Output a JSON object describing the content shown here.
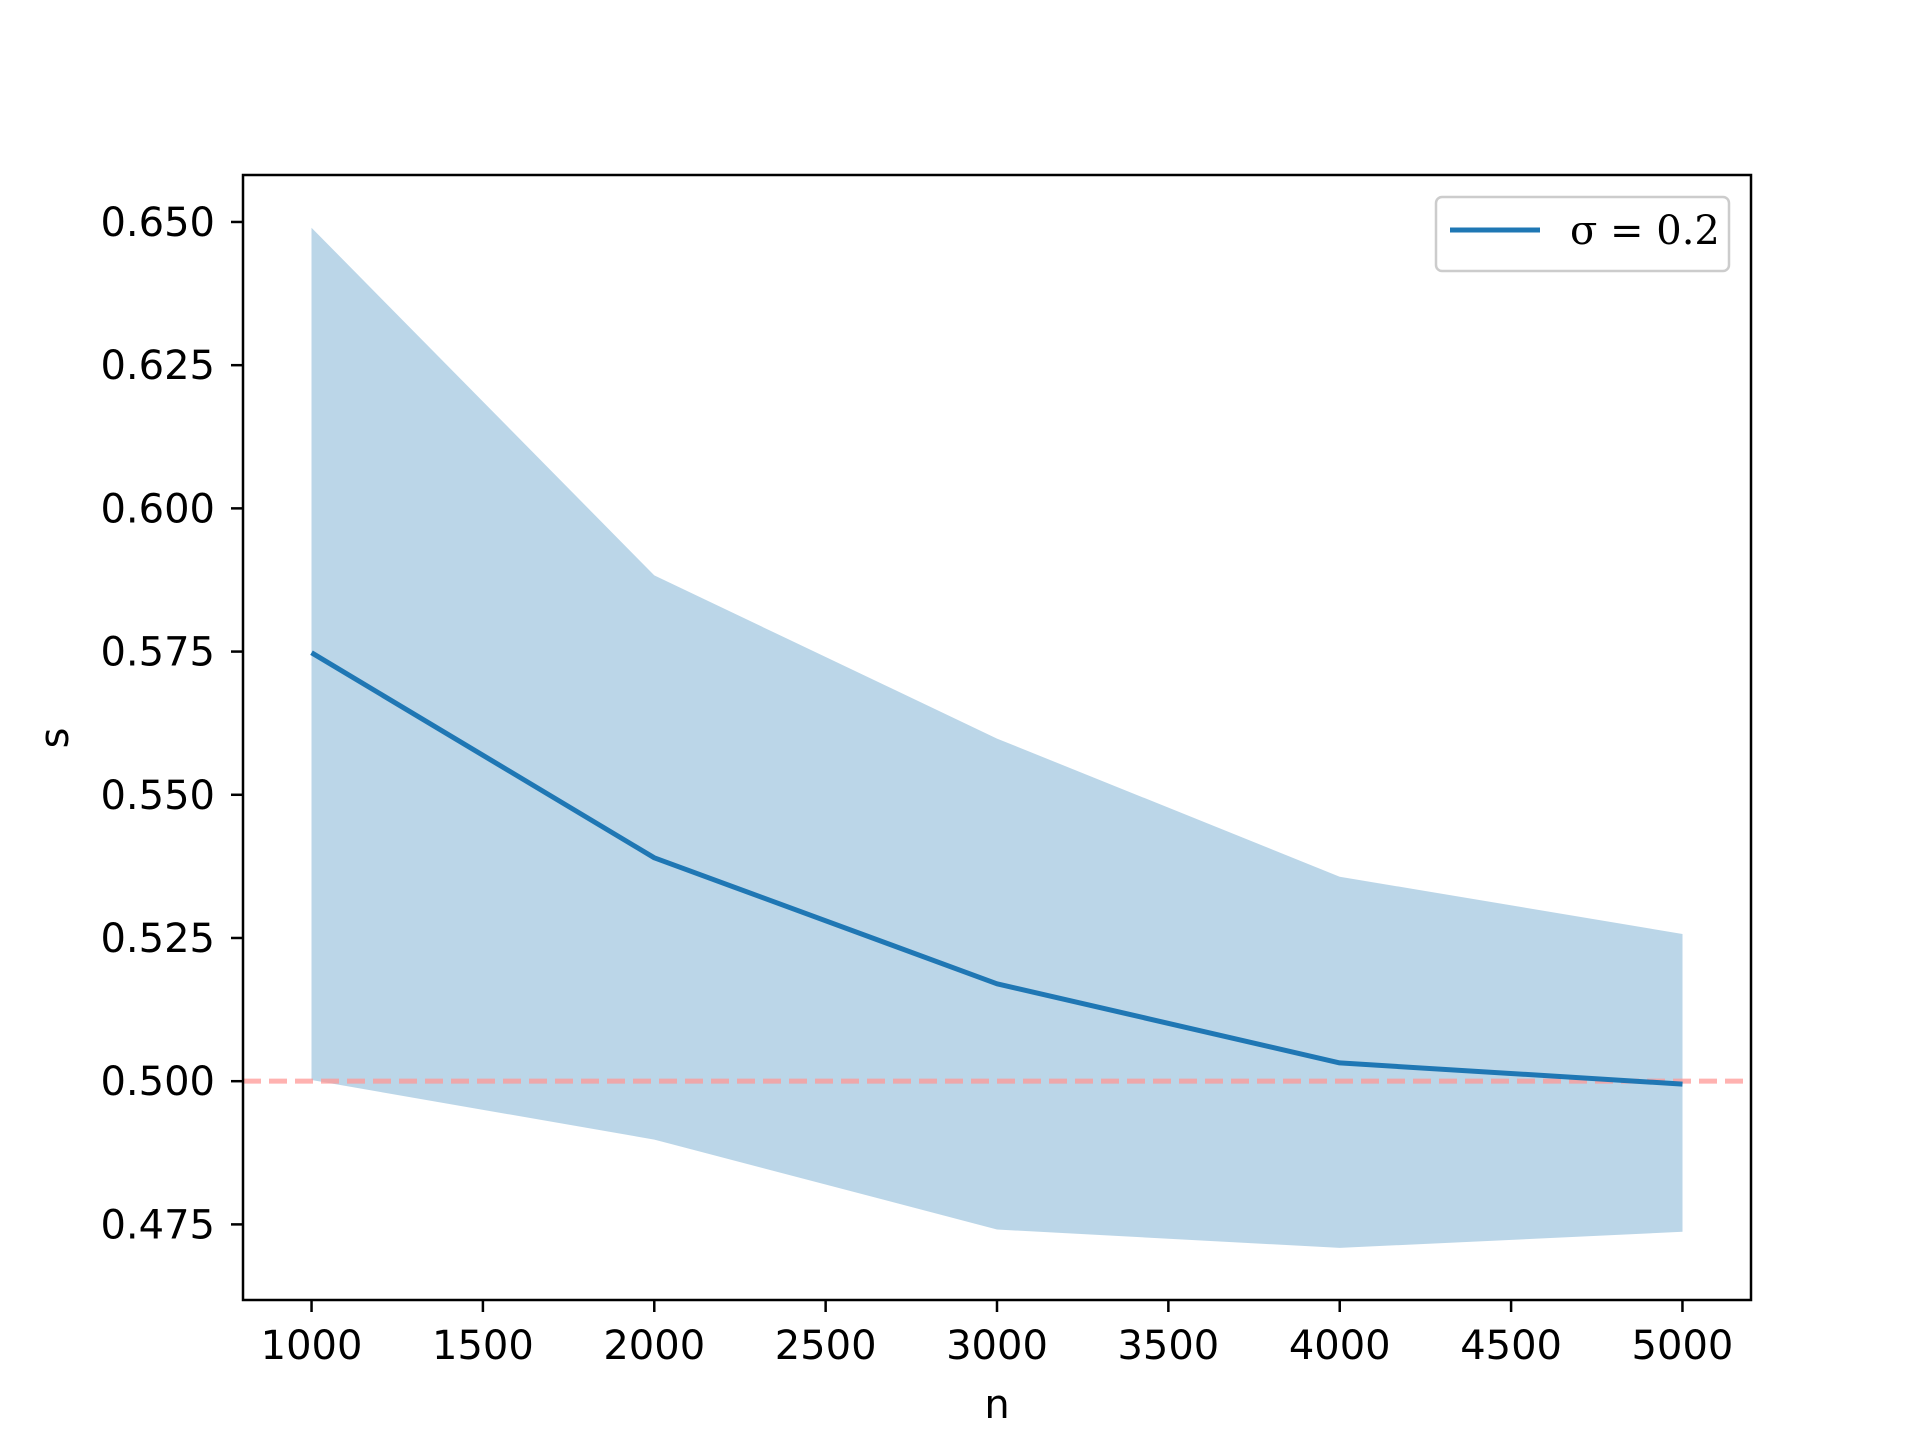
{
  "chart_data": {
    "type": "line",
    "title": "",
    "xlabel": "n",
    "ylabel": "s",
    "xlim": [
      800,
      5200
    ],
    "ylim": [
      0.4618,
      0.6582
    ],
    "xticks": [
      1000,
      1500,
      2000,
      2500,
      3000,
      3500,
      4000,
      4500,
      5000
    ],
    "xtick_labels": [
      "1000",
      "1500",
      "2000",
      "2500",
      "3000",
      "3500",
      "4000",
      "4500",
      "5000"
    ],
    "yticks": [
      0.475,
      0.5,
      0.525,
      0.55,
      0.575,
      0.6,
      0.625,
      0.65
    ],
    "ytick_labels": [
      "0.475",
      "0.500",
      "0.525",
      "0.550",
      "0.575",
      "0.600",
      "0.625",
      "0.650"
    ],
    "grid": false,
    "legend_position": "top-right",
    "x": [
      1000,
      2000,
      3000,
      4000,
      5000
    ],
    "series": [
      {
        "name": "σ = 0.2",
        "values": [
          0.5748,
          0.539,
          0.517,
          0.5032,
          0.4995
        ],
        "lower": [
          0.5002,
          0.4898,
          0.4741,
          0.4709,
          0.4737
        ],
        "upper": [
          0.649,
          0.5883,
          0.5598,
          0.5357,
          0.5257
        ],
        "color": "#1f77b4",
        "band_color": "#1f77b4"
      }
    ],
    "reference_line": {
      "y": 0.5,
      "color": "#ff9896",
      "style": "dashed"
    }
  }
}
